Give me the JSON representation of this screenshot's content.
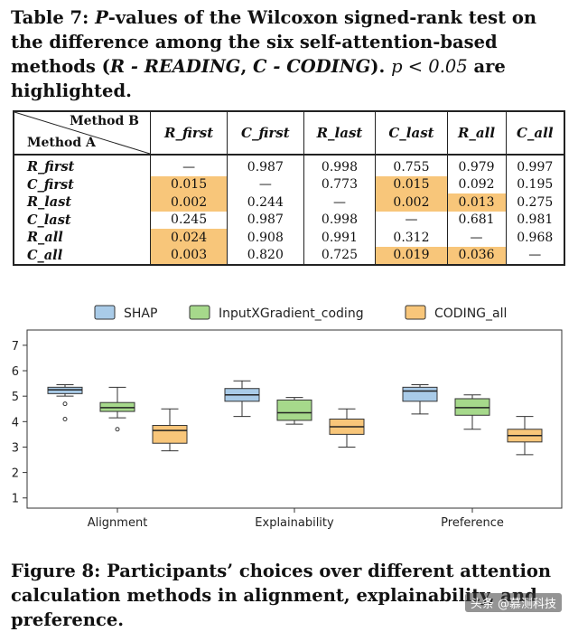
{
  "table_caption": {
    "lead": "Table 7: ",
    "p": "P",
    "text1": "-values of the Wilcoxon signed-rank test on the difference among the six self-attention-based methods (",
    "r_def": "R - READING",
    "sep": ", ",
    "c_def": "C - CODING",
    "text2": "). ",
    "cond": "p < 0.05",
    "text3": " are highlighted."
  },
  "table": {
    "corner_b": "Method B",
    "corner_a": "Method A",
    "columns": [
      "R_first",
      "C_first",
      "R_last",
      "C_last",
      "R_all",
      "C_all"
    ],
    "rows": [
      {
        "name": "R_first",
        "cells": [
          "—",
          "0.987",
          "0.998",
          "0.755",
          "0.979",
          "0.997"
        ],
        "highlight": [
          false,
          false,
          false,
          false,
          false,
          false
        ]
      },
      {
        "name": "C_first",
        "cells": [
          "0.015",
          "—",
          "0.773",
          "0.015",
          "0.092",
          "0.195"
        ],
        "highlight": [
          true,
          false,
          false,
          true,
          false,
          false
        ]
      },
      {
        "name": "R_last",
        "cells": [
          "0.002",
          "0.244",
          "—",
          "0.002",
          "0.013",
          "0.275"
        ],
        "highlight": [
          true,
          false,
          false,
          true,
          true,
          false
        ]
      },
      {
        "name": "C_last",
        "cells": [
          "0.245",
          "0.987",
          "0.998",
          "—",
          "0.681",
          "0.981"
        ],
        "highlight": [
          false,
          false,
          false,
          false,
          false,
          false
        ]
      },
      {
        "name": "R_all",
        "cells": [
          "0.024",
          "0.908",
          "0.991",
          "0.312",
          "—",
          "0.968"
        ],
        "highlight": [
          true,
          false,
          false,
          false,
          false,
          false
        ]
      },
      {
        "name": "C_all",
        "cells": [
          "0.003",
          "0.820",
          "0.725",
          "0.019",
          "0.036",
          "—"
        ],
        "highlight": [
          true,
          false,
          false,
          true,
          true,
          false
        ]
      }
    ],
    "highlight_color": "#f8c67a"
  },
  "chart_data": {
    "type": "box",
    "categories": [
      "Alignment",
      "Explainability",
      "Preference"
    ],
    "ylim": [
      0.6,
      7.6
    ],
    "yticks": [
      1,
      2,
      3,
      4,
      5,
      6,
      7
    ],
    "legend_position": "top",
    "grid": false,
    "series": [
      {
        "name": "SHAP",
        "color": "#a9cbe8",
        "boxes": [
          {
            "min": 5.0,
            "q1": 5.1,
            "median": 5.25,
            "q3": 5.35,
            "max": 5.45,
            "outliers": [
              4.7,
              4.1
            ]
          },
          {
            "min": 4.2,
            "q1": 4.8,
            "median": 5.05,
            "q3": 5.3,
            "max": 5.6,
            "outliers": []
          },
          {
            "min": 4.3,
            "q1": 4.8,
            "median": 5.2,
            "q3": 5.35,
            "max": 5.45,
            "outliers": []
          }
        ]
      },
      {
        "name": "InputXGradient_coding",
        "color": "#a6d98b",
        "boxes": [
          {
            "min": 4.15,
            "q1": 4.4,
            "median": 4.55,
            "q3": 4.75,
            "max": 5.35,
            "outliers": [
              3.7
            ]
          },
          {
            "min": 3.9,
            "q1": 4.05,
            "median": 4.35,
            "q3": 4.85,
            "max": 4.95,
            "outliers": []
          },
          {
            "min": 3.7,
            "q1": 4.25,
            "median": 4.55,
            "q3": 4.9,
            "max": 5.05,
            "outliers": []
          }
        ]
      },
      {
        "name": "CODING_all",
        "color": "#f8c67a",
        "boxes": [
          {
            "min": 2.85,
            "q1": 3.15,
            "median": 3.65,
            "q3": 3.85,
            "max": 4.5,
            "outliers": []
          },
          {
            "min": 3.0,
            "q1": 3.5,
            "median": 3.8,
            "q3": 4.1,
            "max": 4.5,
            "outliers": []
          },
          {
            "min": 2.7,
            "q1": 3.2,
            "median": 3.45,
            "q3": 3.7,
            "max": 4.2,
            "outliers": []
          }
        ]
      }
    ]
  },
  "figure_caption": "Figure 8: Participants’ choices over different attention calculation methods in alignment, explainability, and preference.",
  "watermark": "头条 @慕测科技"
}
